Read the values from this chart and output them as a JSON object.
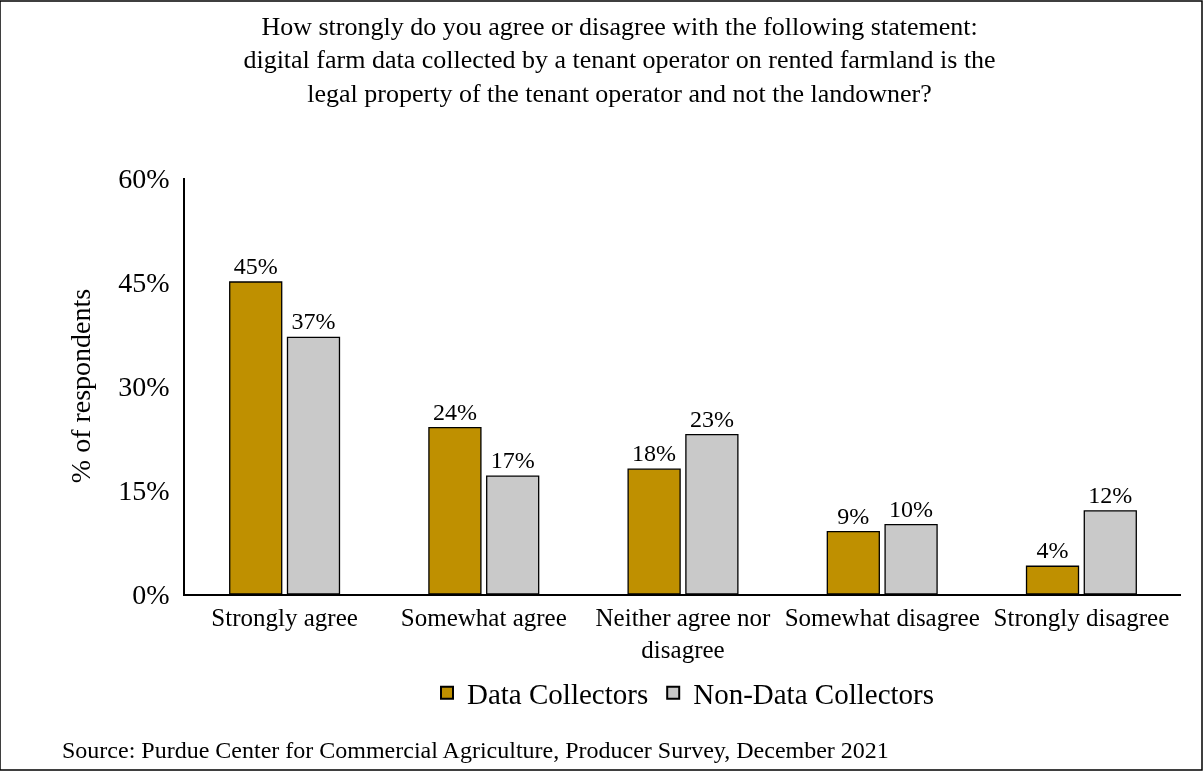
{
  "chart_data": {
    "type": "bar",
    "title": "How strongly do you agree or disagree with the following statement: digital farm data collected by a tenant operator on rented farmland is the legal property of the tenant operator and not the landowner?",
    "ylabel": "% of respondents",
    "categories": [
      "Strongly agree",
      "Somewhat agree",
      "Neither agree nor disagree",
      "Somewhat disagree",
      "Strongly disagree"
    ],
    "series": [
      {
        "name": "Data Collectors",
        "color": "#bf9000",
        "values": [
          45,
          24,
          18,
          9,
          4
        ],
        "value_labels": [
          "45%",
          "24%",
          "18%",
          "9%",
          "4%"
        ]
      },
      {
        "name": "Non-Data Collectors",
        "color": "#c9c9c9",
        "values": [
          37,
          17,
          23,
          10,
          12
        ],
        "value_labels": [
          "37%",
          "17%",
          "23%",
          "10%",
          "12%"
        ]
      }
    ],
    "ylim": [
      0,
      60
    ],
    "yticks": [
      {
        "value": 0,
        "label": "0%"
      },
      {
        "value": 15,
        "label": "15%"
      },
      {
        "value": 30,
        "label": "30%"
      },
      {
        "value": 45,
        "label": "45%"
      },
      {
        "value": 60,
        "label": "60%"
      }
    ],
    "grid": false,
    "legend": "bottom",
    "annotations": [
      "Source: Purdue Center for Commercial Agriculture, Producer Survey, December 2021"
    ]
  }
}
